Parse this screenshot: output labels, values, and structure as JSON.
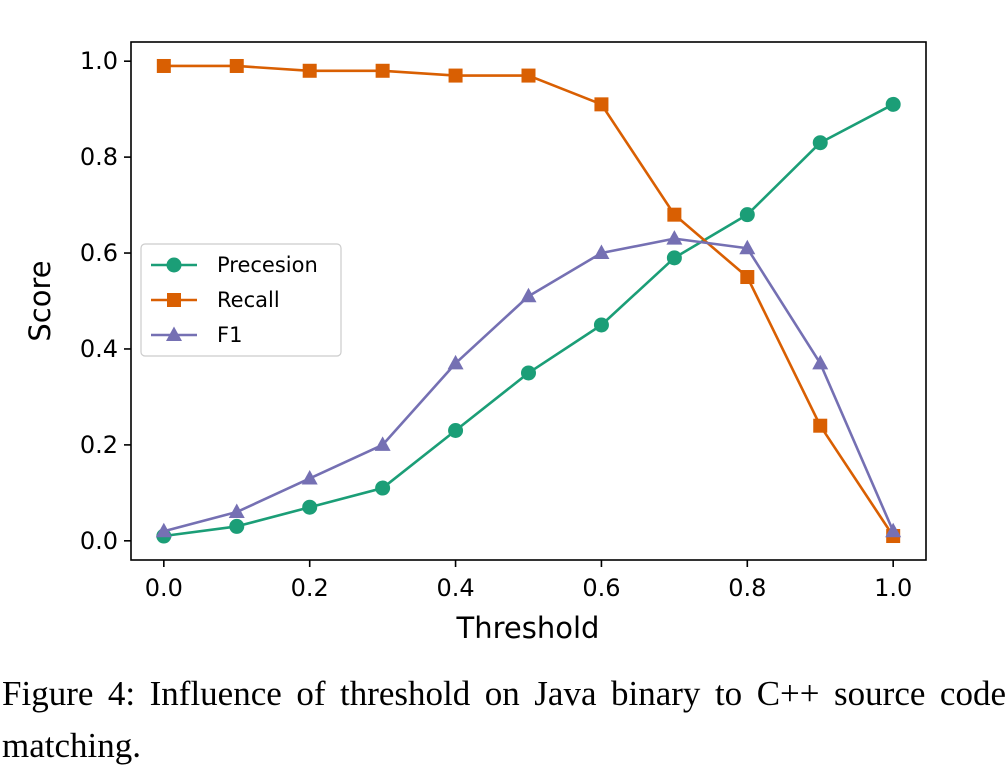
{
  "caption": "Figure 4: Influence of threshold on Java binary to C++ source code matching.",
  "chart_data": {
    "type": "line",
    "xlabel": "Threshold",
    "ylabel": "Score",
    "xlim": [
      -0.045,
      1.045
    ],
    "ylim": [
      -0.04,
      1.04
    ],
    "xticks": [
      "0.0",
      "0.2",
      "0.4",
      "0.6",
      "0.8",
      "1.0"
    ],
    "yticks": [
      "0.0",
      "0.2",
      "0.4",
      "0.6",
      "0.8",
      "1.0"
    ],
    "grid": false,
    "legend_position": "center-left",
    "x": [
      0.0,
      0.1,
      0.2,
      0.3,
      0.4,
      0.5,
      0.6,
      0.7,
      0.8,
      0.9,
      1.0
    ],
    "series": [
      {
        "name": "Precesion",
        "marker": "circle",
        "color": "#1b9e77",
        "values": [
          0.01,
          0.03,
          0.07,
          0.11,
          0.23,
          0.35,
          0.45,
          0.59,
          0.68,
          0.83,
          0.91
        ]
      },
      {
        "name": "Recall",
        "marker": "square",
        "color": "#d95f02",
        "values": [
          0.99,
          0.99,
          0.98,
          0.98,
          0.97,
          0.97,
          0.91,
          0.68,
          0.55,
          0.24,
          0.01
        ]
      },
      {
        "name": "F1",
        "marker": "triangle",
        "color": "#7570b3",
        "values": [
          0.02,
          0.06,
          0.13,
          0.2,
          0.37,
          0.51,
          0.6,
          0.63,
          0.61,
          0.37,
          0.02
        ]
      }
    ]
  }
}
